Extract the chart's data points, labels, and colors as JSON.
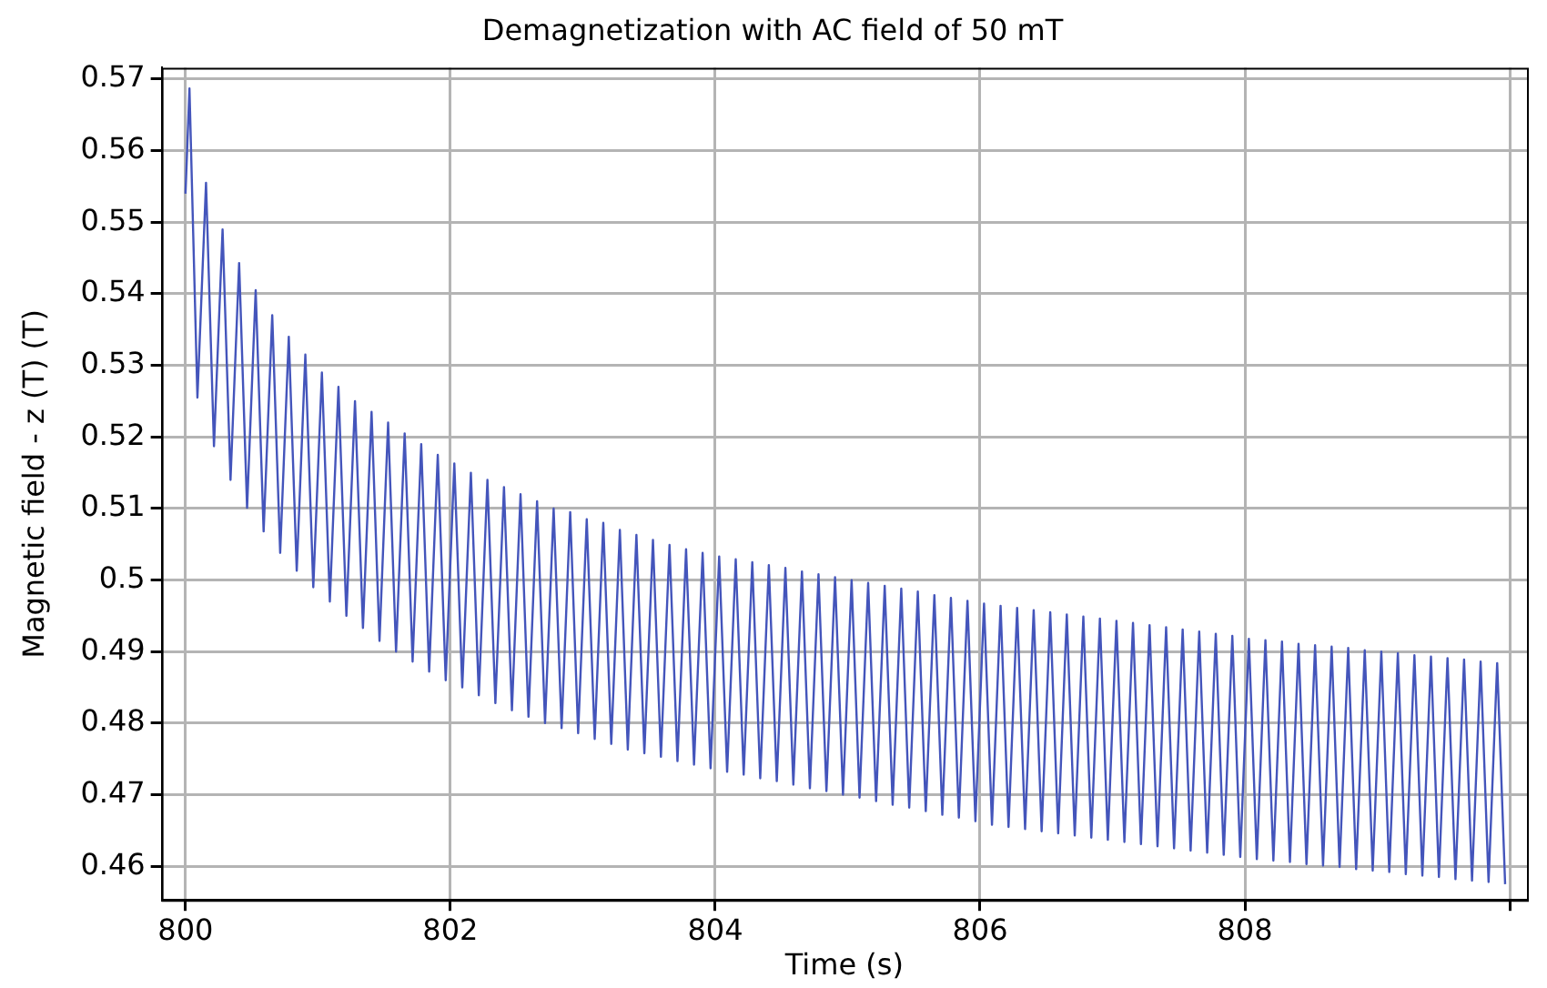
{
  "chart_data": {
    "type": "line",
    "title": "Demagnetization with AC field of 50 mT",
    "xlabel": "Time (s)",
    "ylabel": "Magnetic field - z (T) (T)",
    "xlim": [
      799.82,
      810.13
    ],
    "xticks": [
      800,
      802,
      804,
      806,
      808,
      {
        "value": 810,
        "label": null
      }
    ],
    "ylim": [
      0.4553,
      0.5716
    ],
    "yticks": [
      0.46,
      0.47,
      0.48,
      0.49,
      0.5,
      0.51,
      0.52,
      0.53,
      0.54,
      0.55,
      0.56,
      0.57
    ],
    "grid": true,
    "legend": false,
    "marker": "none",
    "line_style": "solid",
    "series": [
      {
        "color": "#4455bb",
        "x": [
          800,
          800.03,
          800.09,
          800.155,
          800.215,
          800.28,
          800.34,
          800.405,
          800.465,
          800.53,
          800.59,
          800.655,
          800.715,
          800.78,
          800.84,
          800.905,
          800.965,
          801.03,
          801.09,
          801.155,
          801.215,
          801.28,
          801.34,
          801.405,
          801.465,
          801.53,
          801.59,
          801.655,
          801.715,
          801.78,
          801.84,
          801.905,
          801.965,
          802.03,
          802.09,
          802.155,
          802.215,
          802.28,
          802.34,
          802.405,
          802.465,
          802.53,
          802.59,
          802.655,
          802.715,
          802.78,
          802.84,
          802.905,
          802.965,
          803.03,
          803.09,
          803.155,
          803.215,
          803.28,
          803.34,
          803.405,
          803.465,
          803.53,
          803.59,
          803.655,
          803.715,
          803.78,
          803.84,
          803.905,
          803.965,
          804.03,
          804.09,
          804.155,
          804.215,
          804.28,
          804.34,
          804.405,
          804.465,
          804.53,
          804.59,
          804.655,
          804.715,
          804.78,
          804.84,
          804.905,
          804.965,
          805.03,
          805.09,
          805.155,
          805.215,
          805.28,
          805.34,
          805.405,
          805.465,
          805.53,
          805.59,
          805.655,
          805.715,
          805.78,
          805.84,
          805.905,
          805.965,
          806.03,
          806.09,
          806.155,
          806.215,
          806.28,
          806.34,
          806.405,
          806.465,
          806.53,
          806.59,
          806.655,
          806.715,
          806.78,
          806.84,
          806.905,
          806.965,
          807.03,
          807.09,
          807.155,
          807.215,
          807.28,
          807.34,
          807.405,
          807.465,
          807.53,
          807.59,
          807.655,
          807.715,
          807.78,
          807.84,
          807.905,
          807.965,
          808.03,
          808.09,
          808.155,
          808.215,
          808.28,
          808.34,
          808.405,
          808.465,
          808.53,
          808.59,
          808.655,
          808.715,
          808.78,
          808.84,
          808.905,
          808.965,
          809.03,
          809.09,
          809.155,
          809.215,
          809.28,
          809.34,
          809.405,
          809.465,
          809.53,
          809.59,
          809.655,
          809.715,
          809.78,
          809.84,
          809.905,
          809.965
        ],
        "values": [
          0.554,
          0.5687,
          0.5255,
          0.5555,
          0.5187,
          0.549,
          0.514,
          0.5443,
          0.5101,
          0.5405,
          0.5068,
          0.537,
          0.5038,
          0.534,
          0.5013,
          0.5315,
          0.499,
          0.529,
          0.497,
          0.527,
          0.495,
          0.525,
          0.4933,
          0.5235,
          0.4915,
          0.522,
          0.49,
          0.5205,
          0.4886,
          0.519,
          0.4872,
          0.5175,
          0.486,
          0.5163,
          0.485,
          0.515,
          0.4839,
          0.514,
          0.4828,
          0.513,
          0.4818,
          0.512,
          0.4809,
          0.511,
          0.48,
          0.51,
          0.4793,
          0.5095,
          0.4786,
          0.5085,
          0.4778,
          0.508,
          0.4771,
          0.507,
          0.4763,
          0.5063,
          0.4758,
          0.5056,
          0.4753,
          0.5049,
          0.4747,
          0.5043,
          0.4742,
          0.5038,
          0.4737,
          0.5033,
          0.4732,
          0.5029,
          0.4728,
          0.5025,
          0.4723,
          0.5021,
          0.4719,
          0.5017,
          0.4714,
          0.5012,
          0.4709,
          0.5008,
          0.4705,
          0.5004,
          0.47,
          0.5,
          0.4696,
          0.4996,
          0.4691,
          0.4992,
          0.4686,
          0.4988,
          0.4682,
          0.4984,
          0.4677,
          0.4979,
          0.4672,
          0.4975,
          0.4668,
          0.4971,
          0.4663,
          0.4967,
          0.4658,
          0.4964,
          0.4655,
          0.4961,
          0.4652,
          0.4958,
          0.4649,
          0.4955,
          0.4646,
          0.4952,
          0.4643,
          0.4949,
          0.464,
          0.4946,
          0.4637,
          0.4943,
          0.4634,
          0.494,
          0.4631,
          0.4937,
          0.4628,
          0.4934,
          0.4625,
          0.4931,
          0.4622,
          0.4928,
          0.4619,
          0.4925,
          0.4616,
          0.4922,
          0.4613,
          0.4918,
          0.461,
          0.4916,
          0.4608,
          0.4914,
          0.4606,
          0.4911,
          0.4603,
          0.4909,
          0.4601,
          0.4907,
          0.4599,
          0.4905,
          0.4596,
          0.4902,
          0.4594,
          0.49,
          0.4592,
          0.4898,
          0.4589,
          0.4895,
          0.4587,
          0.4893,
          0.4585,
          0.4891,
          0.4582,
          0.4889,
          0.458,
          0.4886,
          0.4578,
          0.4884,
          0.4575
        ]
      }
    ]
  }
}
